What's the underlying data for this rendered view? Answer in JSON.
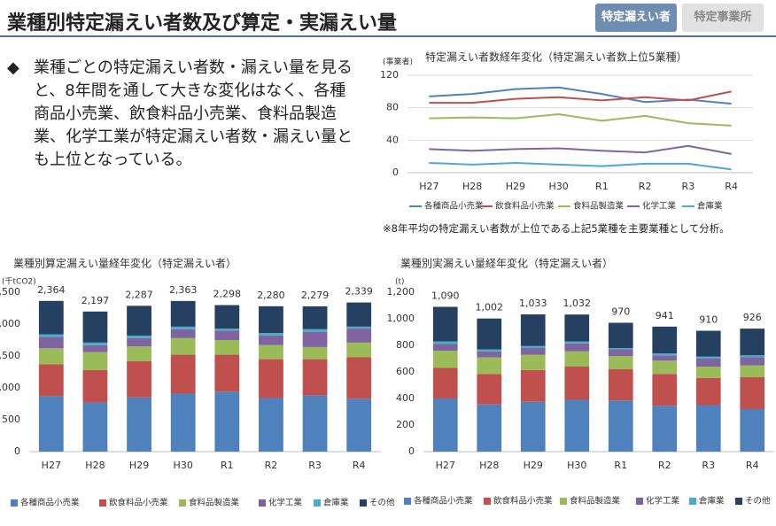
{
  "header": {
    "title": "業種別特定漏えい者数及び算定・実漏えい量",
    "tabs": [
      "特定漏えい者",
      "特定事業所"
    ]
  },
  "bullet": "業種ごとの特定漏えい者数・漏えい量を見ると、8年間を通して大きな変化はなく、各種商品小売業、飲食料品小売業、食料品製造業、化学工業が特定漏えい者数・漏えい量とも上位となっている。",
  "note": "※8年平均の特定漏えい者数が上位である上記5業種を主要業種として分析。",
  "chart_data": [
    {
      "type": "line",
      "title": "特定漏えい者数経年変化（特定漏えい者数上位5業種）",
      "y_label": "(事業者)",
      "categories": [
        "H27",
        "H28",
        "H29",
        "H30",
        "R1",
        "R2",
        "R3",
        "R4"
      ],
      "ylim": [
        0,
        120
      ],
      "yticks": [
        0,
        40,
        80,
        120
      ],
      "grid": true,
      "series": [
        {
          "name": "各種商品小売業",
          "color": "#4f81bd",
          "values": [
            94,
            97,
            103,
            105,
            97,
            87,
            90,
            85
          ]
        },
        {
          "name": "飲食料品小売業",
          "color": "#c0504d",
          "values": [
            86,
            86,
            91,
            93,
            89,
            93,
            89,
            100
          ]
        },
        {
          "name": "食料品製造業",
          "color": "#9bbb59",
          "values": [
            67,
            68,
            67,
            72,
            64,
            70,
            61,
            58
          ]
        },
        {
          "name": "化学工業",
          "color": "#8064a2",
          "values": [
            29,
            27,
            29,
            30,
            27,
            25,
            33,
            23
          ]
        },
        {
          "name": "倉庫業",
          "color": "#4bacc6",
          "values": [
            12,
            10,
            12,
            10,
            8,
            11,
            11,
            4
          ]
        }
      ]
    },
    {
      "type": "stacked_bar",
      "title": "業種別算定漏えい量経年変化（特定漏えい者）",
      "y_label": "(千tCO2)",
      "categories": [
        "H27",
        "H28",
        "H29",
        "H30",
        "R1",
        "R2",
        "R3",
        "R4"
      ],
      "ylim": [
        0,
        2500
      ],
      "yticks": [
        0,
        500,
        {
          "value": 1000,
          "label": "1,000"
        },
        {
          "value": 1500,
          "label": "1,500"
        },
        {
          "value": 2000,
          "label": "2,000"
        },
        {
          "value": 2500,
          "label": "2,500"
        }
      ],
      "grid": false,
      "totals": [
        2364,
        2197,
        2287,
        2363,
        2298,
        2280,
        2279,
        2339
      ],
      "total_labels": [
        "2,364",
        "2,197",
        "2,287",
        "2,363",
        "2,298",
        "2,280",
        "2,279",
        "2,339"
      ],
      "series": [
        {
          "name": "各種商品小売業",
          "color": "#4f81bd",
          "values": [
            870,
            770,
            850,
            910,
            940,
            840,
            880,
            830
          ]
        },
        {
          "name": "飲食料品小売業",
          "color": "#c0504d",
          "values": [
            500,
            510,
            570,
            610,
            580,
            610,
            570,
            650
          ]
        },
        {
          "name": "食料品製造業",
          "color": "#9bbb59",
          "values": [
            250,
            280,
            230,
            260,
            230,
            220,
            190,
            230
          ]
        },
        {
          "name": "化学工業",
          "color": "#8064a2",
          "values": [
            180,
            110,
            130,
            140,
            150,
            150,
            240,
            220
          ]
        },
        {
          "name": "倉庫業",
          "color": "#4bacc6",
          "values": [
            40,
            40,
            40,
            40,
            30,
            40,
            40,
            30
          ]
        },
        {
          "name": "その他",
          "color": "#254061",
          "values": [
            524,
            487,
            467,
            403,
            368,
            420,
            359,
            379
          ]
        }
      ]
    },
    {
      "type": "stacked_bar",
      "title": "業種別実漏えい量経年変化（特定漏えい者）",
      "y_label": "(t)",
      "categories": [
        "H27",
        "H28",
        "H29",
        "H30",
        "R1",
        "R2",
        "R3",
        "R4"
      ],
      "ylim": [
        0,
        1200
      ],
      "yticks": [
        0,
        200,
        400,
        600,
        800,
        {
          "value": 1000,
          "label": "1,000"
        },
        {
          "value": 1200,
          "label": "1,200"
        }
      ],
      "grid": false,
      "totals": [
        1090,
        1002,
        1033,
        1032,
        970,
        941,
        910,
        926
      ],
      "total_labels": [
        "1,090",
        "1,002",
        "1,033",
        "1,032",
        "970",
        "941",
        "910",
        "926"
      ],
      "series": [
        {
          "name": "各種商品小売業",
          "color": "#4f81bd",
          "values": [
            400,
            355,
            375,
            390,
            385,
            345,
            350,
            320
          ]
        },
        {
          "name": "飲食料品小売業",
          "color": "#c0504d",
          "values": [
            230,
            230,
            240,
            250,
            235,
            240,
            205,
            240
          ]
        },
        {
          "name": "食料品製造業",
          "color": "#9bbb59",
          "values": [
            130,
            125,
            115,
            115,
            100,
            100,
            85,
            90
          ]
        },
        {
          "name": "化学工業",
          "color": "#8064a2",
          "values": [
            50,
            45,
            50,
            60,
            50,
            40,
            60,
            60
          ]
        },
        {
          "name": "倉庫業",
          "color": "#4bacc6",
          "values": [
            20,
            15,
            15,
            15,
            10,
            15,
            15,
            15
          ]
        },
        {
          "name": "その他",
          "color": "#254061",
          "values": [
            260,
            232,
            238,
            202,
            190,
            201,
            195,
            201
          ]
        }
      ]
    }
  ]
}
